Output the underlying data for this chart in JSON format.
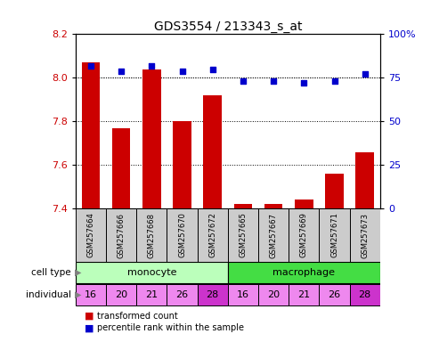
{
  "title": "GDS3554 / 213343_s_at",
  "samples": [
    "GSM257664",
    "GSM257666",
    "GSM257668",
    "GSM257670",
    "GSM257672",
    "GSM257665",
    "GSM257667",
    "GSM257669",
    "GSM257671",
    "GSM257673"
  ],
  "bar_values": [
    8.07,
    7.77,
    8.04,
    7.8,
    7.92,
    7.42,
    7.42,
    7.44,
    7.56,
    7.66
  ],
  "dot_values": [
    82,
    79,
    82,
    79,
    80,
    73,
    73,
    72,
    73,
    77
  ],
  "individuals": [
    "16",
    "20",
    "21",
    "26",
    "28",
    "16",
    "20",
    "21",
    "26",
    "28"
  ],
  "ylim_left": [
    7.4,
    8.2
  ],
  "ylim_right": [
    0,
    100
  ],
  "yticks_left": [
    7.4,
    7.6,
    7.8,
    8.0,
    8.2
  ],
  "yticks_right": [
    0,
    25,
    50,
    75,
    100
  ],
  "bar_color": "#cc0000",
  "dot_color": "#0000cc",
  "monocyte_color": "#bbffbb",
  "macrophage_color": "#44dd44",
  "individual_color": "#ee88ee",
  "individual_highlight": "#cc33cc",
  "bar_bottom": 7.4,
  "legend_bar_label": "transformed count",
  "legend_dot_label": "percentile rank within the sample",
  "title_fontsize": 10,
  "tick_fontsize": 8,
  "sample_fontsize": 6,
  "cell_fontsize": 8,
  "indiv_fontsize": 8,
  "legend_fontsize": 7
}
